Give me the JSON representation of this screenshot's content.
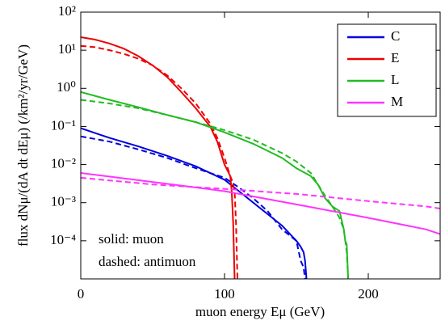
{
  "chart_data": {
    "type": "line",
    "yscale": "log",
    "xlabel": "muon energy Eμ (GeV)",
    "ylabel": "flux dNμ/(dA dt dEμ) (/km²/yr/GeV)",
    "annotations": [
      "solid: muon",
      "dashed: antimuon"
    ],
    "xlim": [
      0,
      250
    ],
    "xticks": [
      0,
      100,
      200
    ],
    "ylim": [
      1e-05,
      100
    ],
    "yticks": [
      {
        "value": 0.0001,
        "label": "10⁻⁴"
      },
      {
        "value": 0.001,
        "label": "10⁻³"
      },
      {
        "value": 0.01,
        "label": "10⁻²"
      },
      {
        "value": 0.1,
        "label": "10⁻¹"
      },
      {
        "value": 1,
        "label": "10⁰"
      },
      {
        "value": 10,
        "label": "10¹"
      },
      {
        "value": 100,
        "label": "10²"
      }
    ],
    "legend": "upper right",
    "series": [
      {
        "name": "C",
        "color": "#0000dd",
        "x": [
          0,
          20,
          40,
          60,
          80,
          100,
          110,
          120,
          130,
          140,
          150,
          153,
          155,
          156,
          157
        ],
        "values": [
          0.09,
          0.05,
          0.03,
          0.017,
          0.009,
          0.004,
          0.002,
          0.001,
          0.0005,
          0.00025,
          0.0001,
          7e-05,
          5e-05,
          3e-05,
          1e-05
        ],
        "antimuon_values": [
          0.055,
          0.04,
          0.025,
          0.015,
          0.008,
          0.0045,
          0.0025,
          0.0013,
          0.0006,
          0.0002,
          0.0001,
          3e-05,
          2e-05,
          1e-05,
          null
        ]
      },
      {
        "name": "E",
        "color": "#ee0000",
        "x": [
          0,
          10,
          20,
          30,
          40,
          50,
          60,
          70,
          80,
          90,
          95,
          100,
          104,
          105,
          106,
          107,
          108,
          109
        ],
        "values": [
          22,
          19,
          15,
          11,
          7,
          4,
          2,
          0.8,
          0.3,
          0.1,
          0.04,
          0.01,
          0.005,
          0.002,
          0.0003,
          1e-05,
          null,
          null
        ],
        "antimuon_values": [
          13,
          12,
          10,
          8,
          6,
          4,
          2.2,
          1,
          0.4,
          0.12,
          0.05,
          0.015,
          0.005,
          0.004,
          0.003,
          0.002,
          0.0003,
          1e-05
        ]
      },
      {
        "name": "L",
        "color": "#22bb22",
        "x": [
          0,
          20,
          40,
          60,
          80,
          100,
          120,
          140,
          150,
          160,
          165,
          170,
          175,
          180,
          183,
          184,
          185,
          186
        ],
        "values": [
          0.8,
          0.5,
          0.32,
          0.2,
          0.13,
          0.07,
          0.035,
          0.015,
          0.008,
          0.005,
          0.003,
          0.0013,
          0.0008,
          0.0006,
          0.0002,
          0.0001,
          8e-05,
          1e-05
        ],
        "antimuon_values": [
          0.5,
          0.4,
          0.3,
          0.2,
          0.13,
          0.08,
          0.045,
          0.02,
          0.012,
          0.006,
          0.003,
          0.0015,
          0.0008,
          0.0004,
          0.0002,
          0.0001,
          5e-05,
          1e-05
        ]
      },
      {
        "name": "M",
        "color": "#ff33ff",
        "x": [
          0,
          50,
          100,
          150,
          200,
          240,
          250
        ],
        "values": [
          0.006,
          0.0035,
          0.002,
          0.0009,
          0.0004,
          0.0002,
          0.00015
        ],
        "antimuon_values": [
          0.0045,
          0.003,
          0.0023,
          0.0017,
          0.0011,
          0.0008,
          0.0007
        ]
      }
    ]
  }
}
